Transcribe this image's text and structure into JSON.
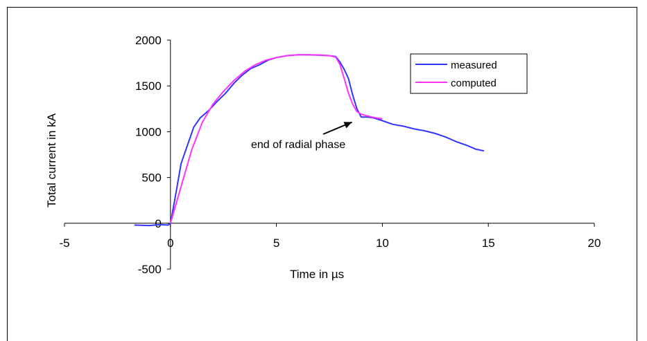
{
  "chart_data": {
    "type": "line",
    "title": "",
    "xlabel": "Time in µs",
    "ylabel": "Total current in kA",
    "xlim": [
      -5,
      20
    ],
    "ylim": [
      -500,
      2000
    ],
    "x_ticks": [
      -5,
      0,
      5,
      10,
      15,
      20
    ],
    "y_ticks": [
      -500,
      0,
      500,
      1000,
      1500,
      2000
    ],
    "grid": false,
    "legend_position": "top-right",
    "annotation": {
      "text": "end of radial phase",
      "x": 8.5,
      "y": 1150
    },
    "series": [
      {
        "name": "measured",
        "color": "#3333ff",
        "x": [
          -1.7,
          -1.0,
          -0.5,
          -0.1,
          0.0,
          0.2,
          0.5,
          0.8,
          1.1,
          1.4,
          1.8,
          2.2,
          2.6,
          3.0,
          3.4,
          3.8,
          4.2,
          4.6,
          5.0,
          5.5,
          6.0,
          6.5,
          7.0,
          7.5,
          7.8,
          8.0,
          8.2,
          8.4,
          8.6,
          8.8,
          9.0,
          9.3,
          9.6,
          10.0,
          10.5,
          11.0,
          11.5,
          12.0,
          12.5,
          13.0,
          13.5,
          14.0,
          14.4,
          14.8
        ],
        "y": [
          -20,
          -25,
          -15,
          -20,
          0,
          250,
          650,
          850,
          1050,
          1150,
          1230,
          1330,
          1420,
          1530,
          1620,
          1690,
          1730,
          1780,
          1810,
          1830,
          1840,
          1840,
          1835,
          1830,
          1820,
          1760,
          1680,
          1580,
          1400,
          1250,
          1160,
          1160,
          1150,
          1120,
          1080,
          1060,
          1030,
          1010,
          980,
          940,
          890,
          850,
          810,
          790
        ]
      },
      {
        "name": "computed",
        "color": "#ff33ff",
        "x": [
          0.0,
          0.5,
          1.0,
          1.5,
          2.0,
          2.5,
          3.0,
          3.5,
          4.0,
          4.5,
          5.0,
          5.5,
          6.0,
          6.5,
          7.0,
          7.5,
          7.8,
          8.0,
          8.2,
          8.4,
          8.6,
          8.8,
          9.0,
          9.5,
          10.0
        ],
        "y": [
          0,
          400,
          800,
          1100,
          1300,
          1440,
          1560,
          1660,
          1730,
          1780,
          1810,
          1830,
          1840,
          1840,
          1838,
          1830,
          1815,
          1730,
          1580,
          1420,
          1300,
          1220,
          1190,
          1160,
          1140
        ]
      }
    ]
  }
}
